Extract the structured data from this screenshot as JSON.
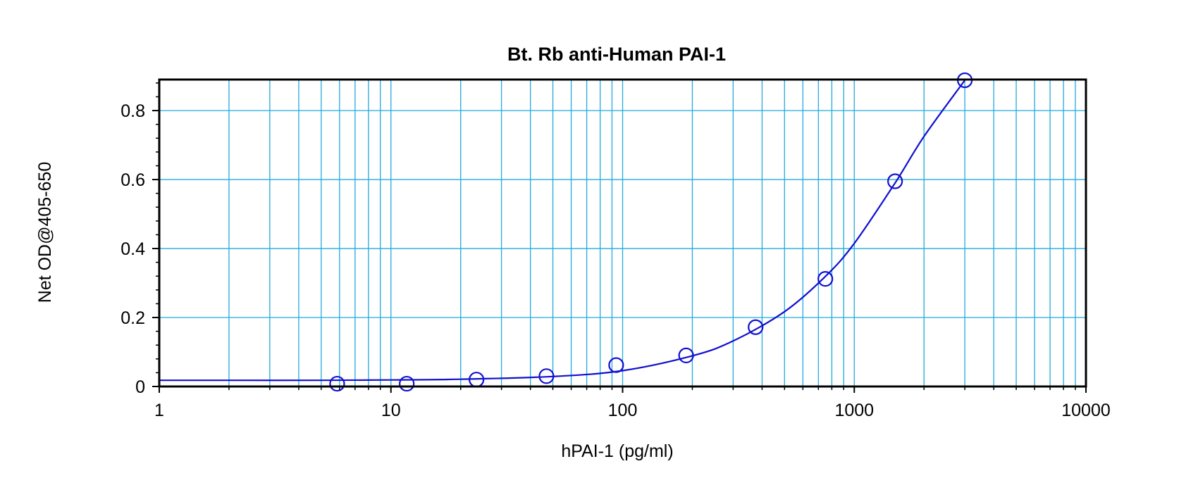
{
  "chart_data": {
    "type": "scatter",
    "title": "Bt. Rb anti-Human PAI-1",
    "xlabel": "hPAI-1 (pg/ml)",
    "ylabel": "Net OD@405-650",
    "x_scale": "log",
    "xlim": [
      1,
      10000
    ],
    "ylim": [
      0,
      0.89
    ],
    "x_ticks": [
      1,
      10,
      100,
      1000,
      10000
    ],
    "x_tick_labels": [
      "1",
      "10",
      "100",
      "1000",
      "10000"
    ],
    "y_ticks": [
      0,
      0.2,
      0.4,
      0.6,
      0.8
    ],
    "y_tick_labels": [
      "0",
      "0.2",
      "0.4",
      "0.6",
      "0.8"
    ],
    "grid": true,
    "legend": "none",
    "points": {
      "x": [
        5.86,
        11.7,
        23.4,
        46.9,
        93.8,
        188,
        375,
        750,
        1500,
        3000
      ],
      "y": [
        0.008,
        0.008,
        0.02,
        0.03,
        0.062,
        0.09,
        0.172,
        0.312,
        0.595,
        0.888
      ]
    },
    "fit_curve": {
      "x": [
        1,
        2,
        5,
        10,
        20,
        50,
        100,
        200,
        300,
        500,
        750,
        1000,
        1500,
        2000,
        3000
      ],
      "y": [
        0.018,
        0.018,
        0.018,
        0.019,
        0.021,
        0.029,
        0.046,
        0.089,
        0.132,
        0.217,
        0.319,
        0.415,
        0.59,
        0.725,
        0.888
      ]
    },
    "colors": {
      "series": "#1010d0",
      "grid": "#22aadd",
      "frame": "#000000"
    }
  }
}
